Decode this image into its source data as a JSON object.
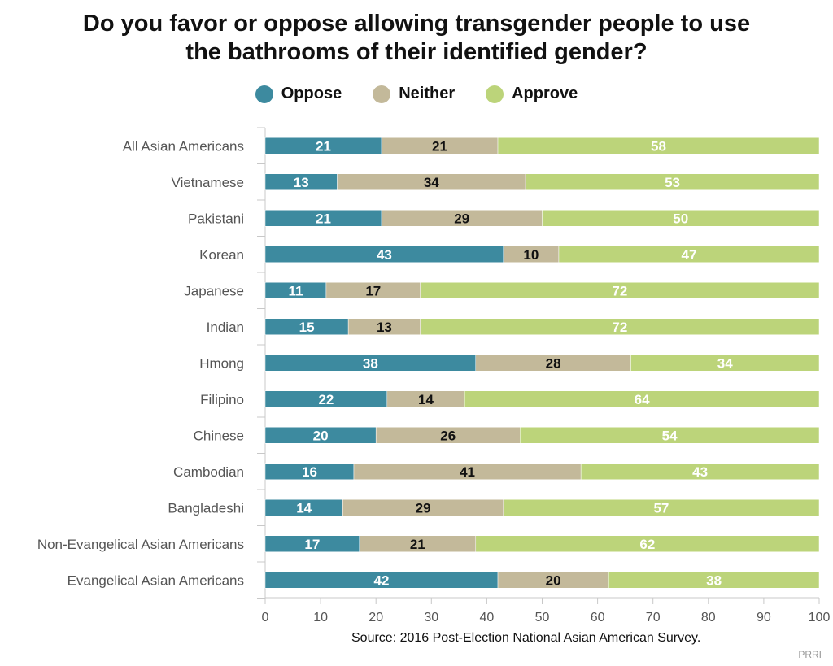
{
  "title_line1": "Do you favor or oppose allowing transgender people to use",
  "title_line2": "the bathrooms of their identified gender?",
  "source": "Source: 2016 Post-Election National Asian American Survey.",
  "brand": "PRRI",
  "colors": {
    "oppose": "#3d8a9f",
    "neither": "#c3b99a",
    "approve": "#bcd47a",
    "axis": "#c8c8c8",
    "tick_text": "#555555"
  },
  "chart_data": {
    "type": "bar",
    "orientation": "horizontal",
    "stacked": true,
    "title": "Do you favor or oppose allowing transgender people to use the bathrooms of their identified gender?",
    "categories": [
      "All Asian Americans",
      "Vietnamese",
      "Pakistani",
      "Korean",
      "Japanese",
      "Indian",
      "Hmong",
      "Filipino",
      "Chinese",
      "Cambodian",
      "Bangladeshi",
      "Non-Evangelical Asian Americans",
      "Evangelical Asian Americans"
    ],
    "series": [
      {
        "name": "Oppose",
        "values": [
          21,
          13,
          21,
          43,
          11,
          15,
          38,
          22,
          20,
          16,
          14,
          17,
          42
        ]
      },
      {
        "name": "Neither",
        "values": [
          21,
          34,
          29,
          10,
          17,
          13,
          28,
          14,
          26,
          41,
          29,
          21,
          20
        ]
      },
      {
        "name": "Approve",
        "values": [
          58,
          53,
          50,
          47,
          72,
          72,
          34,
          64,
          54,
          43,
          57,
          62,
          38
        ]
      }
    ],
    "xlim": [
      0,
      100
    ],
    "xticks": [
      "0",
      "10",
      "20",
      "30",
      "40",
      "50",
      "60",
      "70",
      "80",
      "90",
      "100"
    ],
    "legend": "top-center",
    "grid": false
  }
}
